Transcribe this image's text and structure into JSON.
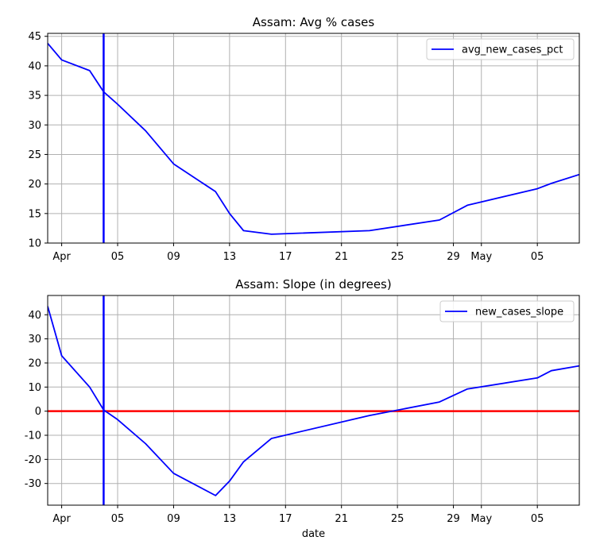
{
  "chart_data": [
    {
      "type": "line",
      "title": "Assam: Avg % cases",
      "xlabel": "",
      "ylabel": "",
      "x_axis": "date",
      "xlim": [
        "2020-03-31",
        "2020-05-08"
      ],
      "ylim": [
        10,
        45.5
      ],
      "yticks": [
        10,
        15,
        20,
        25,
        30,
        35,
        40,
        45
      ],
      "xticks": [
        {
          "date": "2020-04-01",
          "label": "Apr"
        },
        {
          "date": "2020-04-05",
          "label": "05"
        },
        {
          "date": "2020-04-09",
          "label": "09"
        },
        {
          "date": "2020-04-13",
          "label": "13"
        },
        {
          "date": "2020-04-17",
          "label": "17"
        },
        {
          "date": "2020-04-21",
          "label": "21"
        },
        {
          "date": "2020-04-25",
          "label": "25"
        },
        {
          "date": "2020-04-29",
          "label": "29"
        },
        {
          "date": "2020-05-01",
          "label": "May"
        },
        {
          "date": "2020-05-05",
          "label": "05"
        }
      ],
      "grid": true,
      "legend_position": "top-right",
      "series": [
        {
          "name": "avg_new_cases_pct",
          "color": "#0000ff",
          "points": [
            [
              "2020-03-31",
              43.8
            ],
            [
              "2020-04-01",
              41.0
            ],
            [
              "2020-04-03",
              39.2
            ],
            [
              "2020-04-04",
              35.6
            ],
            [
              "2020-04-05",
              33.5
            ],
            [
              "2020-04-07",
              29.0
            ],
            [
              "2020-04-09",
              23.4
            ],
            [
              "2020-04-12",
              18.7
            ],
            [
              "2020-04-13",
              15.0
            ],
            [
              "2020-04-14",
              12.1
            ],
            [
              "2020-04-16",
              11.5
            ],
            [
              "2020-04-23",
              12.1
            ],
            [
              "2020-04-28",
              13.9
            ],
            [
              "2020-04-30",
              16.4
            ],
            [
              "2020-05-05",
              19.2
            ],
            [
              "2020-05-06",
              20.1
            ],
            [
              "2020-05-08",
              21.6
            ]
          ]
        }
      ],
      "vertical_line": {
        "date": "2020-04-04",
        "color": "#0000ff"
      }
    },
    {
      "type": "line",
      "title": "Assam: Slope (in degrees)",
      "xlabel": "date",
      "ylabel": "",
      "x_axis": "date",
      "xlim": [
        "2020-03-31",
        "2020-05-08"
      ],
      "ylim": [
        -39,
        48
      ],
      "yticks": [
        -30,
        -20,
        -10,
        0,
        10,
        20,
        30,
        40
      ],
      "xticks": [
        {
          "date": "2020-04-01",
          "label": "Apr"
        },
        {
          "date": "2020-04-05",
          "label": "05"
        },
        {
          "date": "2020-04-09",
          "label": "09"
        },
        {
          "date": "2020-04-13",
          "label": "13"
        },
        {
          "date": "2020-04-17",
          "label": "17"
        },
        {
          "date": "2020-04-21",
          "label": "21"
        },
        {
          "date": "2020-04-25",
          "label": "25"
        },
        {
          "date": "2020-04-29",
          "label": "29"
        },
        {
          "date": "2020-05-01",
          "label": "May"
        },
        {
          "date": "2020-05-05",
          "label": "05"
        }
      ],
      "grid": true,
      "legend_position": "top-right",
      "series": [
        {
          "name": "new_cases_slope",
          "color": "#0000ff",
          "points": [
            [
              "2020-03-31",
              43.5
            ],
            [
              "2020-04-01",
              23.0
            ],
            [
              "2020-04-03",
              10.0
            ],
            [
              "2020-04-04",
              0.5
            ],
            [
              "2020-04-05",
              -3.5
            ],
            [
              "2020-04-07",
              -13.5
            ],
            [
              "2020-04-09",
              -25.8
            ],
            [
              "2020-04-12",
              -35.0
            ],
            [
              "2020-04-13",
              -29.0
            ],
            [
              "2020-04-14",
              -21.0
            ],
            [
              "2020-04-16",
              -11.3
            ],
            [
              "2020-04-23",
              -1.8
            ],
            [
              "2020-04-28",
              3.8
            ],
            [
              "2020-04-30",
              9.2
            ],
            [
              "2020-05-05",
              13.8
            ],
            [
              "2020-05-06",
              16.8
            ],
            [
              "2020-05-08",
              18.8
            ]
          ]
        }
      ],
      "vertical_line": {
        "date": "2020-04-04",
        "color": "#0000ff"
      },
      "horizontal_line": {
        "value": 0,
        "color": "#ff0000"
      }
    }
  ]
}
